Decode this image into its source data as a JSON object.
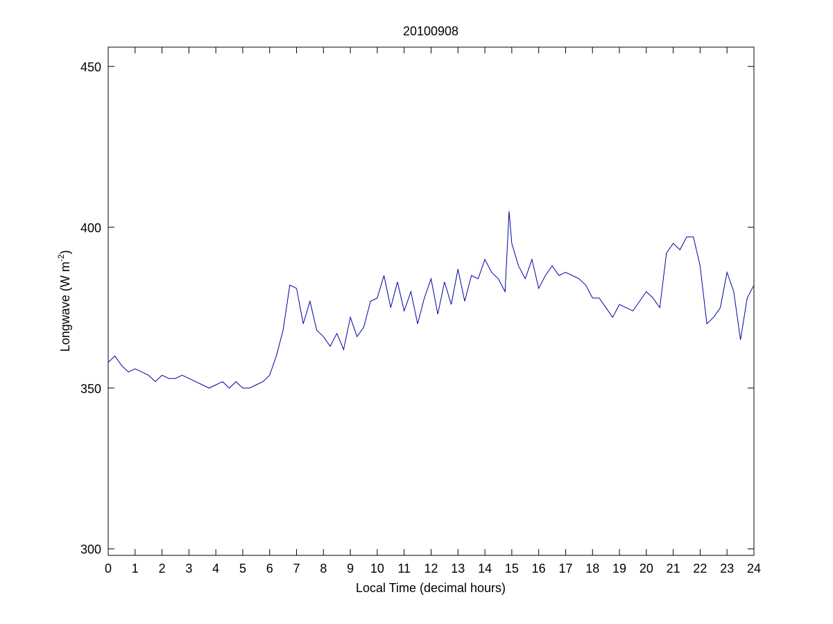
{
  "chart_data": {
    "type": "line",
    "title": "20100908",
    "xlabel": "Local Time (decimal hours)",
    "ylabel": [
      "Longwave (W m",
      "-2",
      ")"
    ],
    "x": [
      0,
      0.25,
      0.5,
      0.75,
      1,
      1.25,
      1.5,
      1.75,
      2,
      2.25,
      2.5,
      2.75,
      3,
      3.25,
      3.5,
      3.75,
      4,
      4.25,
      4.5,
      4.75,
      5,
      5.25,
      5.5,
      5.75,
      6,
      6.25,
      6.5,
      6.75,
      7,
      7.25,
      7.5,
      7.75,
      8,
      8.25,
      8.5,
      8.75,
      9,
      9.25,
      9.5,
      9.75,
      10,
      10.25,
      10.5,
      10.75,
      11,
      11.25,
      11.5,
      11.75,
      12,
      12.25,
      12.5,
      12.75,
      13,
      13.25,
      13.5,
      13.75,
      14,
      14.25,
      14.5,
      14.75,
      14.9,
      15,
      15.25,
      15.5,
      15.75,
      16,
      16.25,
      16.5,
      16.75,
      17,
      17.25,
      17.5,
      17.75,
      18,
      18.25,
      18.5,
      18.75,
      19,
      19.25,
      19.5,
      19.75,
      20,
      20.25,
      20.5,
      20.75,
      21,
      21.25,
      21.5,
      21.75,
      22,
      22.25,
      22.5,
      22.75,
      23,
      23.25,
      23.5,
      23.75,
      24
    ],
    "series": [
      {
        "name": "Longwave",
        "color": "#0000a0",
        "values": [
          358,
          360,
          357,
          355,
          356,
          355,
          354,
          352,
          354,
          353,
          353,
          354,
          353,
          352,
          351,
          350,
          351,
          352,
          350,
          352,
          350,
          350,
          351,
          352,
          354,
          360,
          368,
          382,
          381,
          370,
          377,
          368,
          366,
          363,
          367,
          362,
          372,
          366,
          369,
          377,
          378,
          385,
          375,
          383,
          374,
          380,
          370,
          378,
          384,
          373,
          383,
          376,
          387,
          377,
          385,
          384,
          390,
          386,
          384,
          380,
          405,
          395,
          388,
          384,
          390,
          381,
          385,
          388,
          385,
          386,
          385,
          384,
          382,
          378,
          378,
          375,
          372,
          376,
          375,
          374,
          377,
          380,
          378,
          375,
          392,
          395,
          393,
          397,
          397,
          388,
          370,
          372,
          375,
          386,
          380,
          365,
          378,
          382
        ]
      }
    ],
    "xlim": [
      0,
      24
    ],
    "ylim": [
      298,
      456
    ],
    "xticks": [
      0,
      1,
      2,
      3,
      4,
      5,
      6,
      7,
      8,
      9,
      10,
      11,
      12,
      13,
      14,
      15,
      16,
      17,
      18,
      19,
      20,
      21,
      22,
      23,
      24
    ],
    "yticks": [
      300,
      350,
      400,
      450
    ],
    "grid": false
  }
}
